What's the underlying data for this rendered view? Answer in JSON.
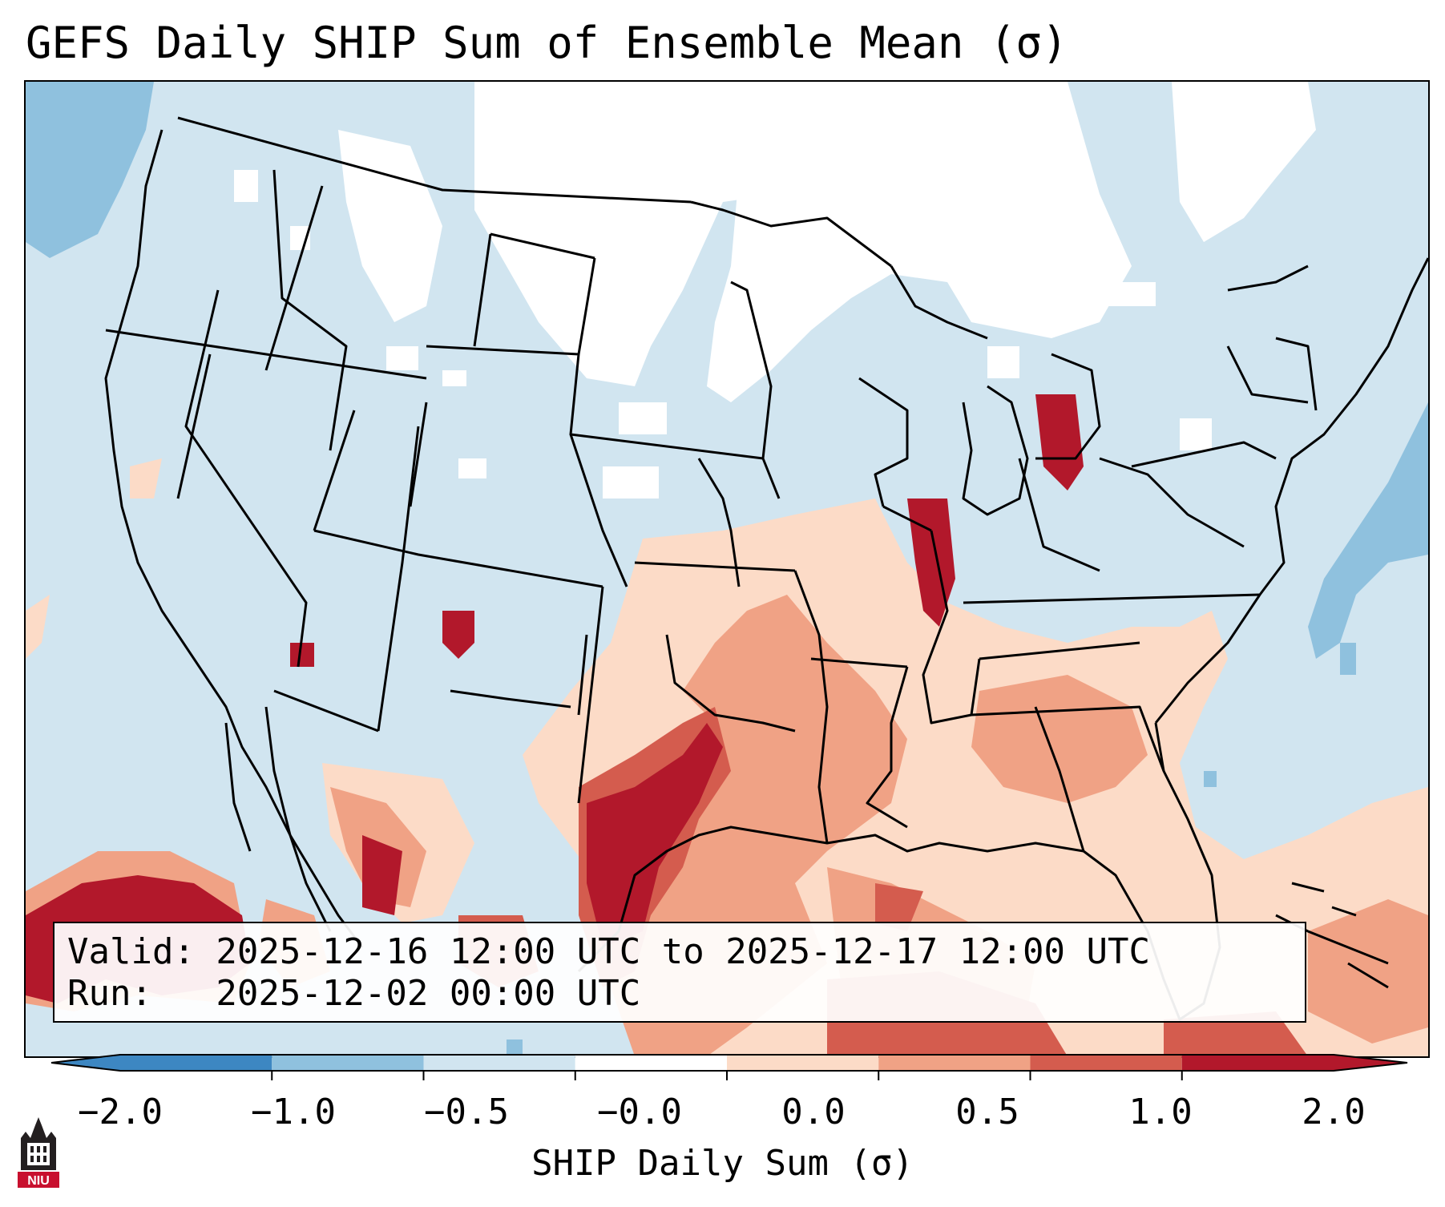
{
  "title": "GEFS Daily SHIP Sum of Ensemble Mean (σ)",
  "info": {
    "valid_line": "Valid: 2025-12-16 12:00 UTC to 2025-12-17 12:00 UTC",
    "run_line": "Run:   2025-12-02 00:00 UTC"
  },
  "colorbar": {
    "label": "SHIP Daily Sum (σ)",
    "ticks": [
      "−2.0",
      "−1.0",
      "−0.5",
      "−0.0",
      "0.0",
      "0.5",
      "1.0",
      "2.0"
    ],
    "bins": [
      "#3d87c2",
      "#8fc1de",
      "#d1e5f0",
      "#ffffff",
      "#fcdbc7",
      "#f0a285",
      "#d45c4e",
      "#b2182b"
    ]
  },
  "logo": {
    "text": "NIU"
  },
  "colors": {
    "neutral": "#d1e5f0",
    "light_blue": "#8fc1de",
    "light_red": "#fcdbc7",
    "mid_red": "#f0a285",
    "red": "#d45c4e",
    "dark_red": "#b2182b"
  }
}
